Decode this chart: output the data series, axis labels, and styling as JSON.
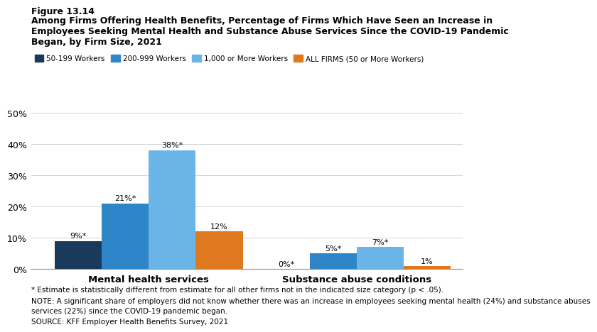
{
  "figure_label": "Figure 13.14",
  "title_line1": "Among Firms Offering Health Benefits, Percentage of Firms Which Have Seen an Increase in",
  "title_line2": "Employees Seeking Mental Health and Substance Abuse Services Since the COVID-19 Pandemic",
  "title_line3": "Began, by Firm Size, 2021",
  "groups": [
    "Mental health services",
    "Substance abuse conditions"
  ],
  "series": [
    {
      "label": "50-199 Workers",
      "color": "#1a3a5c",
      "values": [
        9,
        0
      ]
    },
    {
      "label": "200-999 Workers",
      "color": "#2e86c8",
      "values": [
        21,
        5
      ]
    },
    {
      "label": "1,000 or More Workers",
      "color": "#6ab4e8",
      "values": [
        38,
        7
      ]
    },
    {
      "label": "ALL FIRMS (50 or More Workers)",
      "color": "#e07820",
      "values": [
        12,
        1
      ]
    }
  ],
  "bar_labels": [
    [
      "9%*",
      "21%*",
      "38%*",
      "12%"
    ],
    [
      "0%*",
      "5%*",
      "7%*",
      "1%"
    ]
  ],
  "ylim": [
    0,
    50
  ],
  "yticks": [
    0,
    10,
    20,
    30,
    40,
    50
  ],
  "ytick_labels": [
    "0%",
    "10%",
    "20%",
    "30%",
    "40%",
    "50%"
  ],
  "footnote1": "* Estimate is statistically different from estimate for all other firms not in the indicated size category (p < .05).",
  "footnote2": "NOTE: A significant share of employers did not know whether there was an increase in employees seeking mental health (24%) and substance abuses",
  "footnote3": "services (22%) since the COVID-19 pandemic began.",
  "footnote4": "SOURCE: KFF Employer Health Benefits Survey, 2021",
  "bar_width": 0.12,
  "group_centers": [
    0.25,
    0.78
  ],
  "xlim": [
    -0.05,
    1.05
  ],
  "background_color": "#ffffff"
}
